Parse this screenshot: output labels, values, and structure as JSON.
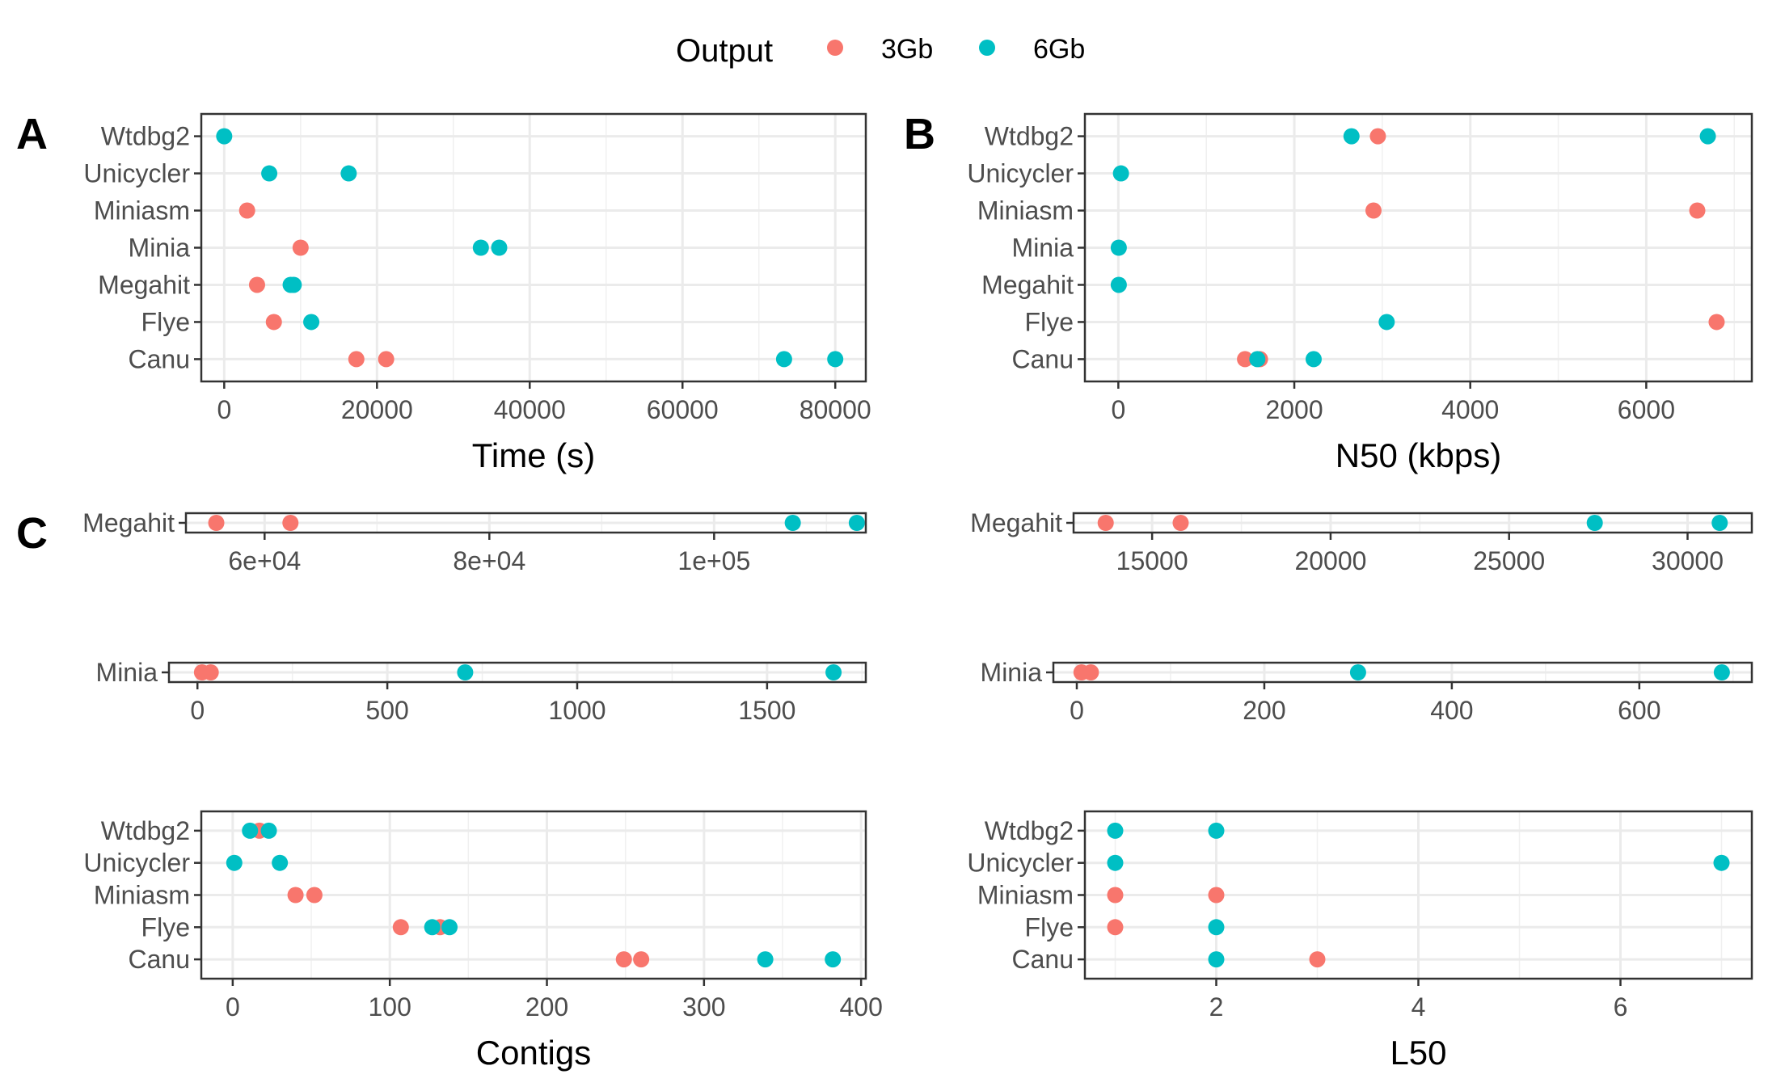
{
  "legend": {
    "title": "Output",
    "items": [
      {
        "label": "3Gb",
        "color": "#F8766D"
      },
      {
        "label": "6Gb",
        "color": "#00BFC4"
      }
    ]
  },
  "panel_tags": [
    "A",
    "B",
    "C"
  ],
  "chart_data": [
    {
      "id": "time",
      "type": "scatter",
      "panel_tag": "A",
      "xlabel": "Time (s)",
      "xlim": [
        -3000,
        84000
      ],
      "xticks": [
        0,
        20000,
        40000,
        60000,
        80000
      ],
      "xtick_labels": [
        "0",
        "20000",
        "40000",
        "60000",
        "80000"
      ],
      "categories": [
        "Wtdbg2",
        "Unicycler",
        "Miniasm",
        "Minia",
        "Megahit",
        "Flye",
        "Canu"
      ],
      "series": [
        {
          "name": "3Gb",
          "points": [
            [
              "Miniasm",
              3000
            ],
            [
              "Minia",
              10000
            ],
            [
              "Megahit",
              4300
            ],
            [
              "Flye",
              6500
            ],
            [
              "Canu",
              17300
            ],
            [
              "Canu",
              21200
            ]
          ]
        },
        {
          "name": "6Gb",
          "points": [
            [
              "Wtdbg2",
              0
            ],
            [
              "Unicycler",
              5900
            ],
            [
              "Unicycler",
              16300
            ],
            [
              "Minia",
              33600
            ],
            [
              "Minia",
              36000
            ],
            [
              "Megahit",
              8700
            ],
            [
              "Megahit",
              9100
            ],
            [
              "Flye",
              11400
            ],
            [
              "Canu",
              73300
            ],
            [
              "Canu",
              80000
            ]
          ]
        }
      ]
    },
    {
      "id": "n50",
      "type": "scatter",
      "panel_tag": "B",
      "xlabel": "N50 (kbps)",
      "xlim": [
        -380,
        7200
      ],
      "xticks": [
        0,
        2000,
        4000,
        6000
      ],
      "xtick_labels": [
        "0",
        "2000",
        "4000",
        "6000"
      ],
      "categories": [
        "Wtdbg2",
        "Unicycler",
        "Miniasm",
        "Minia",
        "Megahit",
        "Flye",
        "Canu"
      ],
      "series": [
        {
          "name": "3Gb",
          "points": [
            [
              "Wtdbg2",
              2950
            ],
            [
              "Miniasm",
              2900
            ],
            [
              "Miniasm",
              6580
            ],
            [
              "Flye",
              6800
            ],
            [
              "Canu",
              1440
            ],
            [
              "Canu",
              1610
            ]
          ]
        },
        {
          "name": "6Gb",
          "points": [
            [
              "Wtdbg2",
              2650
            ],
            [
              "Wtdbg2",
              6700
            ],
            [
              "Unicycler",
              30
            ],
            [
              "Minia",
              5
            ],
            [
              "Megahit",
              5
            ],
            [
              "Flye",
              3050
            ],
            [
              "Canu",
              1580
            ],
            [
              "Canu",
              2220
            ]
          ]
        }
      ]
    },
    {
      "id": "contigs-megahit",
      "type": "scatter",
      "panel_tag": "C",
      "xlabel": "",
      "xlim": [
        53000,
        113500
      ],
      "xticks": [
        60000,
        80000,
        100000
      ],
      "xtick_labels": [
        "6e+04",
        "8e+04",
        "1e+05"
      ],
      "categories": [
        "Megahit"
      ],
      "series": [
        {
          "name": "3Gb",
          "points": [
            [
              "Megahit",
              55700
            ],
            [
              "Megahit",
              62300
            ]
          ]
        },
        {
          "name": "6Gb",
          "points": [
            [
              "Megahit",
              107000
            ],
            [
              "Megahit",
              112700
            ]
          ]
        }
      ]
    },
    {
      "id": "contigs-minia",
      "type": "scatter",
      "xlabel": "",
      "xlim": [
        -75,
        1760
      ],
      "xticks": [
        0,
        500,
        1000,
        1500
      ],
      "xtick_labels": [
        "0",
        "500",
        "1000",
        "1500"
      ],
      "categories": [
        "Minia"
      ],
      "series": [
        {
          "name": "3Gb",
          "points": [
            [
              "Minia",
              12
            ],
            [
              "Minia",
              35
            ]
          ]
        },
        {
          "name": "6Gb",
          "points": [
            [
              "Minia",
              705
            ],
            [
              "Minia",
              1675
            ]
          ]
        }
      ]
    },
    {
      "id": "contigs-others",
      "type": "scatter",
      "xlabel": "Contigs",
      "xlim": [
        -20,
        403
      ],
      "xticks": [
        0,
        100,
        200,
        300,
        400
      ],
      "xtick_labels": [
        "0",
        "100",
        "200",
        "300",
        "400"
      ],
      "categories": [
        "Wtdbg2",
        "Unicycler",
        "Miniasm",
        "Flye",
        "Canu"
      ],
      "series": [
        {
          "name": "3Gb",
          "points": [
            [
              "Wtdbg2",
              17
            ],
            [
              "Miniasm",
              40
            ],
            [
              "Miniasm",
              52
            ],
            [
              "Flye",
              107
            ],
            [
              "Flye",
              132
            ],
            [
              "Canu",
              249
            ],
            [
              "Canu",
              260
            ]
          ]
        },
        {
          "name": "6Gb",
          "points": [
            [
              "Wtdbg2",
              11
            ],
            [
              "Wtdbg2",
              23
            ],
            [
              "Unicycler",
              1
            ],
            [
              "Unicycler",
              30
            ],
            [
              "Flye",
              127
            ],
            [
              "Flye",
              138
            ],
            [
              "Canu",
              339
            ],
            [
              "Canu",
              382
            ]
          ]
        }
      ]
    },
    {
      "id": "l50-megahit",
      "type": "scatter",
      "xlabel": "",
      "xlim": [
        12800,
        31800
      ],
      "xticks": [
        15000,
        20000,
        25000,
        30000
      ],
      "xtick_labels": [
        "15000",
        "20000",
        "25000",
        "30000"
      ],
      "categories": [
        "Megahit"
      ],
      "series": [
        {
          "name": "3Gb",
          "points": [
            [
              "Megahit",
              13700
            ],
            [
              "Megahit",
              15800
            ]
          ]
        },
        {
          "name": "6Gb",
          "points": [
            [
              "Megahit",
              27400
            ],
            [
              "Megahit",
              30900
            ]
          ]
        }
      ]
    },
    {
      "id": "l50-minia",
      "type": "scatter",
      "xlabel": "",
      "xlim": [
        -25,
        720
      ],
      "xticks": [
        0,
        200,
        400,
        600
      ],
      "xtick_labels": [
        "0",
        "200",
        "400",
        "600"
      ],
      "categories": [
        "Minia"
      ],
      "series": [
        {
          "name": "3Gb",
          "points": [
            [
              "Minia",
              5
            ],
            [
              "Minia",
              15
            ]
          ]
        },
        {
          "name": "6Gb",
          "points": [
            [
              "Minia",
              300
            ],
            [
              "Minia",
              688
            ]
          ]
        }
      ]
    },
    {
      "id": "l50-others",
      "type": "scatter",
      "xlabel": "L50",
      "xlim": [
        0.7,
        7.3
      ],
      "xticks": [
        2,
        4,
        6
      ],
      "xtick_labels": [
        "2",
        "4",
        "6"
      ],
      "categories": [
        "Wtdbg2",
        "Unicycler",
        "Miniasm",
        "Flye",
        "Canu"
      ],
      "series": [
        {
          "name": "3Gb",
          "points": [
            [
              "Miniasm",
              1
            ],
            [
              "Miniasm",
              2
            ],
            [
              "Flye",
              1
            ],
            [
              "Canu",
              3
            ]
          ]
        },
        {
          "name": "6Gb",
          "points": [
            [
              "Wtdbg2",
              1
            ],
            [
              "Wtdbg2",
              2
            ],
            [
              "Unicycler",
              1
            ],
            [
              "Unicycler",
              7
            ],
            [
              "Flye",
              2
            ],
            [
              "Canu",
              2
            ]
          ]
        }
      ]
    }
  ]
}
